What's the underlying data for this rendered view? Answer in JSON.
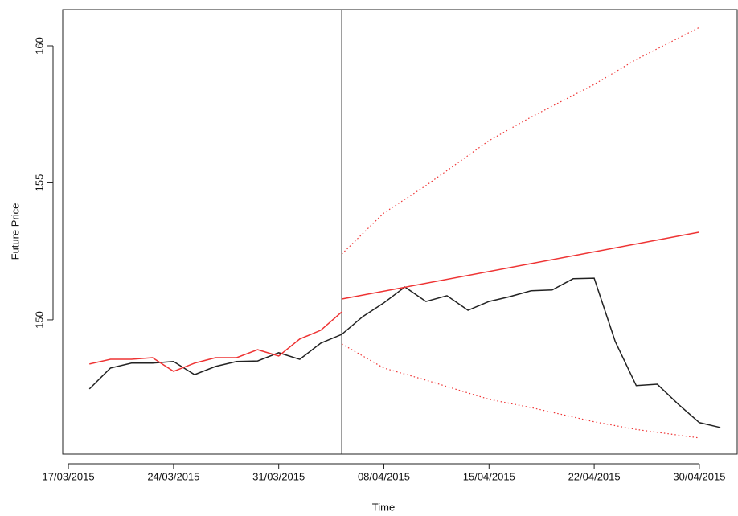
{
  "chart_data": {
    "type": "line",
    "xlabel": "Time",
    "ylabel": "Future Price",
    "xlim": [
      -0.27,
      31.8
    ],
    "ylim": [
      145.1,
      161.32
    ],
    "xticks": [
      {
        "value": 0,
        "label": "17/03/2015"
      },
      {
        "value": 5,
        "label": "24/03/2015"
      },
      {
        "value": 10,
        "label": "31/03/2015"
      },
      {
        "value": 15,
        "label": "08/04/2015"
      },
      {
        "value": 20,
        "label": "15/04/2015"
      },
      {
        "value": 25,
        "label": "22/04/2015"
      },
      {
        "value": 30,
        "label": "30/04/2015"
      }
    ],
    "yticks": [
      150,
      155,
      160
    ],
    "vline_x": 13,
    "series": [
      {
        "color": "#222222",
        "style": "solid",
        "x": [
          1,
          2,
          3,
          4,
          5,
          6,
          7,
          8,
          9,
          10,
          11,
          12,
          13,
          14,
          15,
          16,
          17,
          18,
          19,
          20,
          21,
          22,
          23,
          24,
          25,
          26,
          27,
          28,
          29,
          30,
          31
        ],
        "values": [
          147.48,
          148.24,
          148.42,
          148.42,
          148.48,
          148.0,
          148.3,
          148.48,
          148.5,
          148.8,
          148.56,
          149.15,
          149.47,
          150.12,
          150.62,
          151.2,
          150.67,
          150.88,
          150.35,
          150.67,
          150.85,
          151.06,
          151.09,
          151.5,
          151.52,
          149.21,
          147.6,
          147.65,
          146.92,
          146.25,
          146.07
        ]
      },
      {
        "color": "#ee3333",
        "style": "solid",
        "x": [
          1,
          2,
          3,
          4,
          5,
          6,
          7,
          8,
          9,
          10,
          11,
          12,
          13
        ],
        "values": [
          148.39,
          148.56,
          148.56,
          148.62,
          148.12,
          148.42,
          148.62,
          148.62,
          148.91,
          148.68,
          149.3,
          149.62,
          150.29
        ]
      },
      {
        "color": "#ee3333",
        "style": "solid",
        "x": [
          13,
          30
        ],
        "values": [
          150.76,
          153.2
        ]
      },
      {
        "color": "#ee3333",
        "style": "dotted",
        "x": [
          13,
          15,
          17,
          20,
          22,
          25,
          27,
          30
        ],
        "values": [
          152.4,
          153.9,
          154.9,
          156.54,
          157.4,
          158.59,
          159.5,
          160.67
        ]
      },
      {
        "color": "#ee3333",
        "style": "dotted",
        "x": [
          13,
          15,
          17,
          20,
          22,
          25,
          27,
          30
        ],
        "values": [
          149.12,
          148.24,
          147.8,
          147.1,
          146.8,
          146.28,
          146.0,
          145.69
        ]
      }
    ]
  }
}
